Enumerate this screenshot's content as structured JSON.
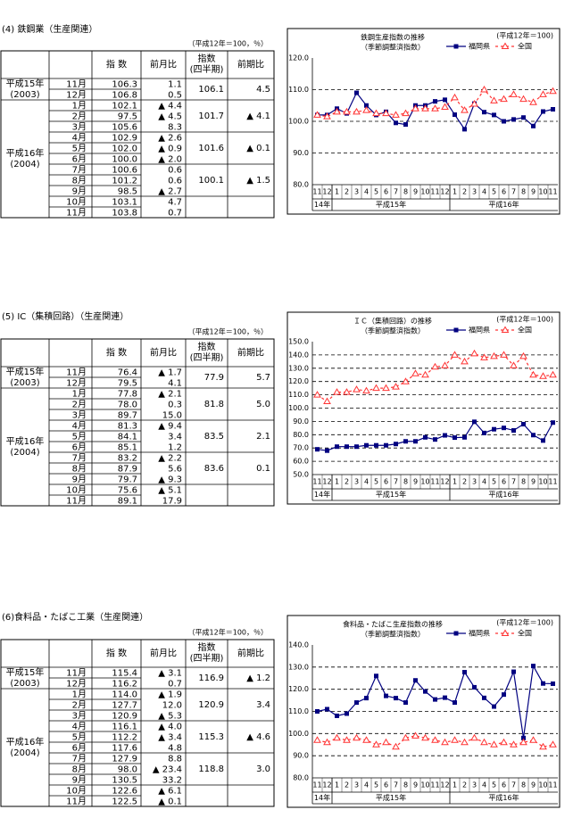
{
  "sections": [
    {
      "heading": "(4) 鉄鋼業（生産関連）",
      "unit": "（平成12年＝100，％）",
      "table": {
        "headers": {
          "index": "指 数",
          "mom": "前月比",
          "qindex": "指数",
          "qindex_sub": "(四半期)",
          "qchange": "前期比"
        },
        "years": [
          {
            "label": "平成15年",
            "sub": "(2003)"
          },
          {
            "label": "平成16年",
            "sub": "(2004)"
          }
        ],
        "rows": [
          {
            "month": "11月",
            "index": "106.3",
            "mom": "1.1"
          },
          {
            "month": "12月",
            "index": "106.8",
            "mom": "0.5"
          },
          {
            "month": "1月",
            "index": "102.1",
            "mom": "▲ 4.4"
          },
          {
            "month": "2月",
            "index": "97.5",
            "mom": "▲ 4.5"
          },
          {
            "month": "3月",
            "index": "105.6",
            "mom": "8.3"
          },
          {
            "month": "4月",
            "index": "102.9",
            "mom": "▲ 2.6"
          },
          {
            "month": "5月",
            "index": "102.0",
            "mom": "▲ 0.9"
          },
          {
            "month": "6月",
            "index": "100.0",
            "mom": "▲ 2.0"
          },
          {
            "month": "7月",
            "index": "100.6",
            "mom": "0.6"
          },
          {
            "month": "8月",
            "index": "101.2",
            "mom": "0.6"
          },
          {
            "month": "9月",
            "index": "98.5",
            "mom": "▲ 2.7"
          },
          {
            "month": "10月",
            "index": "103.1",
            "mom": "4.7"
          },
          {
            "month": "11月",
            "index": "103.8",
            "mom": "0.7"
          }
        ],
        "quarters": [
          {
            "index": "106.1",
            "change": "4.5"
          },
          {
            "index": "101.7",
            "change": "▲ 4.1"
          },
          {
            "index": "101.6",
            "change": "▲ 0.1"
          },
          {
            "index": "100.1",
            "change": "▲ 1.5"
          }
        ]
      }
    },
    {
      "heading": "(5) IC（集積回路）（生産関連）",
      "unit": "（平成12年＝100，％）",
      "table": {
        "headers": {
          "index": "指 数",
          "mom": "前月比",
          "qindex": "指数",
          "qindex_sub": "(四半期)",
          "qchange": "前期比"
        },
        "years": [
          {
            "label": "平成15年",
            "sub": "(2003)"
          },
          {
            "label": "平成16年",
            "sub": "(2004)"
          }
        ],
        "rows": [
          {
            "month": "11月",
            "index": "76.4",
            "mom": "▲ 1.7"
          },
          {
            "month": "12月",
            "index": "79.5",
            "mom": "4.1"
          },
          {
            "month": "1月",
            "index": "77.8",
            "mom": "▲ 2.1"
          },
          {
            "month": "2月",
            "index": "78.0",
            "mom": "0.3"
          },
          {
            "month": "3月",
            "index": "89.7",
            "mom": "15.0"
          },
          {
            "month": "4月",
            "index": "81.3",
            "mom": "▲ 9.4"
          },
          {
            "month": "5月",
            "index": "84.1",
            "mom": "3.4"
          },
          {
            "month": "6月",
            "index": "85.1",
            "mom": "1.2"
          },
          {
            "month": "7月",
            "index": "83.2",
            "mom": "▲ 2.2"
          },
          {
            "month": "8月",
            "index": "87.9",
            "mom": "5.6"
          },
          {
            "month": "9月",
            "index": "79.7",
            "mom": "▲ 9.3"
          },
          {
            "month": "10月",
            "index": "75.6",
            "mom": "▲ 5.1"
          },
          {
            "month": "11月",
            "index": "89.1",
            "mom": "17.9"
          }
        ],
        "quarters": [
          {
            "index": "77.9",
            "change": "5.7"
          },
          {
            "index": "81.8",
            "change": "5.0"
          },
          {
            "index": "83.5",
            "change": "2.1"
          },
          {
            "index": "83.6",
            "change": "0.1"
          }
        ]
      }
    },
    {
      "heading": "(6)食料品・たばこ工業（生産関連）",
      "unit": "（平成12年＝100，％）",
      "table": {
        "headers": {
          "index": "指 数",
          "mom": "前月比",
          "qindex": "指数",
          "qindex_sub": "(四半期)",
          "qchange": "前期比"
        },
        "years": [
          {
            "label": "平成15年",
            "sub": "(2003)"
          },
          {
            "label": "平成16年",
            "sub": "(2004)"
          }
        ],
        "rows": [
          {
            "month": "11月",
            "index": "115.4",
            "mom": "▲ 3.1"
          },
          {
            "month": "12月",
            "index": "116.2",
            "mom": "0.7"
          },
          {
            "month": "1月",
            "index": "114.0",
            "mom": "▲ 1.9"
          },
          {
            "month": "2月",
            "index": "127.7",
            "mom": "12.0"
          },
          {
            "month": "3月",
            "index": "120.9",
            "mom": "▲ 5.3"
          },
          {
            "month": "4月",
            "index": "116.1",
            "mom": "▲ 4.0"
          },
          {
            "month": "5月",
            "index": "112.2",
            "mom": "▲ 3.4"
          },
          {
            "month": "6月",
            "index": "117.6",
            "mom": "4.8"
          },
          {
            "month": "7月",
            "index": "127.9",
            "mom": "8.8"
          },
          {
            "month": "8月",
            "index": "98.0",
            "mom": "▲ 23.4"
          },
          {
            "month": "9月",
            "index": "130.5",
            "mom": "33.2"
          },
          {
            "month": "10月",
            "index": "122.6",
            "mom": "▲ 6.1"
          },
          {
            "month": "11月",
            "index": "122.5",
            "mom": "▲ 0.1"
          }
        ],
        "quarters": [
          {
            "index": "116.9",
            "change": "▲ 1.2"
          },
          {
            "index": "120.9",
            "change": "3.4"
          },
          {
            "index": "115.3",
            "change": "▲ 4.6"
          },
          {
            "index": "118.8",
            "change": "3.0"
          }
        ]
      }
    }
  ],
  "chart_data": [
    {
      "type": "line",
      "title": "鉄鋼生産指数の推移",
      "subtitle": "（季節調整済指数）",
      "note": "(平成12年＝100)",
      "legend": "top-right",
      "grid": true,
      "categories": [
        "11",
        "12",
        "1",
        "2",
        "3",
        "4",
        "5",
        "6",
        "7",
        "8",
        "9",
        "10",
        "11",
        "12",
        "1",
        "2",
        "3",
        "4",
        "5",
        "6",
        "7",
        "8",
        "9",
        "10",
        "11"
      ],
      "year_labels": [
        "14年",
        "平成15年",
        "平成16年"
      ],
      "series": [
        {
          "name": "福岡県",
          "color": "#000080",
          "marker": "square",
          "dashed": false,
          "values": [
            102,
            102,
            104,
            102.5,
            109,
            105,
            102,
            103,
            99.5,
            99,
            105,
            105,
            106.3,
            106.8,
            102.1,
            97.5,
            105.6,
            102.9,
            102.0,
            100.0,
            100.6,
            101.2,
            98.5,
            103.1,
            103.8
          ]
        },
        {
          "name": "全国",
          "color": "#ff3333",
          "marker": "triangle",
          "dashed": true,
          "values": [
            102,
            101.5,
            103,
            103,
            103,
            103.5,
            102.5,
            102.5,
            102,
            102.5,
            104,
            104,
            104,
            104.5,
            107.5,
            103.5,
            105.5,
            110,
            106.5,
            107,
            108.5,
            107,
            106,
            108.5,
            109.5
          ]
        }
      ],
      "ylim": [
        80,
        120
      ],
      "yticks": [
        {
          "value": 80,
          "label": "80.0"
        },
        {
          "value": 90,
          "label": "90.0"
        },
        {
          "value": 100,
          "label": "100.0"
        },
        {
          "value": 110,
          "label": "110.0"
        },
        {
          "value": 120,
          "label": "120.0"
        }
      ]
    },
    {
      "type": "line",
      "title": "ＩＣ（集積回路）の推移",
      "subtitle": "（季節調整済指数）",
      "note": "(平成12年＝100)",
      "legend": "top-right",
      "grid": true,
      "categories": [
        "11",
        "12",
        "1",
        "2",
        "3",
        "4",
        "5",
        "6",
        "7",
        "8",
        "9",
        "10",
        "11",
        "12",
        "1",
        "2",
        "3",
        "4",
        "5",
        "6",
        "7",
        "8",
        "9",
        "10",
        "11"
      ],
      "year_labels": [
        "14年",
        "平成15年",
        "平成16年"
      ],
      "series": [
        {
          "name": "福岡県",
          "color": "#000080",
          "marker": "square",
          "dashed": false,
          "values": [
            69,
            68,
            71,
            71,
            71,
            72,
            72,
            72,
            73,
            75,
            75,
            78,
            76.4,
            79.5,
            77.8,
            78.0,
            89.7,
            81.3,
            84.1,
            85.1,
            83.2,
            87.9,
            79.7,
            75.6,
            89.1
          ]
        },
        {
          "name": "全国",
          "color": "#ff3333",
          "marker": "triangle",
          "dashed": true,
          "values": [
            110,
            105,
            112,
            112,
            114,
            113,
            115,
            115,
            116,
            120,
            126,
            125,
            131,
            132,
            140,
            135,
            141,
            138,
            139,
            140,
            132,
            139,
            125,
            124,
            125
          ]
        }
      ],
      "ylim": [
        50,
        150
      ],
      "yticks": [
        {
          "value": 50,
          "label": "50.0"
        },
        {
          "value": 60,
          "label": "60.0"
        },
        {
          "value": 70,
          "label": "70.0"
        },
        {
          "value": 80,
          "label": "80.0"
        },
        {
          "value": 90,
          "label": "90.0"
        },
        {
          "value": 100,
          "label": "100.0"
        },
        {
          "value": 110,
          "label": "110.0"
        },
        {
          "value": 120,
          "label": "120.0"
        },
        {
          "value": 130,
          "label": "130.0"
        },
        {
          "value": 140,
          "label": "140.0"
        },
        {
          "value": 150,
          "label": "150.0"
        }
      ]
    },
    {
      "type": "line",
      "title": "食料品・たばこ生産指数の推移",
      "subtitle": "（季節調整済指数）",
      "note": "(平成12年＝100)",
      "legend": "top-right",
      "grid": true,
      "categories": [
        "11",
        "12",
        "1",
        "2",
        "3",
        "4",
        "5",
        "6",
        "7",
        "8",
        "9",
        "10",
        "11",
        "12",
        "1",
        "2",
        "3",
        "4",
        "5",
        "6",
        "7",
        "8",
        "9",
        "10",
        "11"
      ],
      "year_labels": [
        "14年",
        "平成15年",
        "平成16年"
      ],
      "series": [
        {
          "name": "福岡県",
          "color": "#000080",
          "marker": "square",
          "dashed": false,
          "values": [
            110,
            111,
            108,
            109,
            114,
            116,
            126,
            117,
            116,
            114,
            124,
            119,
            115.4,
            116.2,
            114.0,
            127.7,
            120.9,
            116.1,
            112.2,
            117.6,
            127.9,
            98.0,
            130.5,
            122.6,
            122.5
          ]
        },
        {
          "name": "全国",
          "color": "#ff3333",
          "marker": "triangle",
          "dashed": true,
          "values": [
            97,
            96,
            98,
            97,
            98,
            97,
            95,
            96,
            94,
            98,
            99,
            98,
            97,
            96,
            97,
            96,
            98,
            96,
            95,
            96,
            95,
            96,
            97,
            94,
            95
          ]
        }
      ],
      "ylim": [
        80,
        140
      ],
      "yticks": [
        {
          "value": 80,
          "label": "80.0"
        },
        {
          "value": 90,
          "label": "90.0"
        },
        {
          "value": 100,
          "label": "100.0"
        },
        {
          "value": 110,
          "label": "110.0"
        },
        {
          "value": 120,
          "label": "120.0"
        },
        {
          "value": 130,
          "label": "130.0"
        },
        {
          "value": 140,
          "label": "140.0"
        }
      ]
    }
  ]
}
